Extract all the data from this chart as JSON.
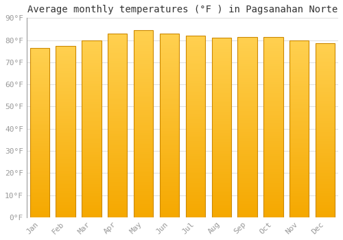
{
  "title": "Average monthly temperatures (°F ) in Pagsanahan Norte",
  "months": [
    "Jan",
    "Feb",
    "Mar",
    "Apr",
    "May",
    "Jun",
    "Jul",
    "Aug",
    "Sep",
    "Oct",
    "Nov",
    "Dec"
  ],
  "values": [
    76.5,
    77.5,
    80.0,
    83.0,
    84.5,
    83.0,
    82.0,
    81.0,
    81.5,
    81.5,
    80.0,
    78.5
  ],
  "bar_color_bottom": "#F5A800",
  "bar_color_top": "#FFD050",
  "bar_edge_color": "#CC8800",
  "background_color": "#FFFFFF",
  "grid_color": "#DDDDDD",
  "ylim": [
    0,
    90
  ],
  "yticks": [
    0,
    10,
    20,
    30,
    40,
    50,
    60,
    70,
    80,
    90
  ],
  "ytick_labels": [
    "0°F",
    "10°F",
    "20°F",
    "30°F",
    "40°F",
    "50°F",
    "60°F",
    "70°F",
    "80°F",
    "90°F"
  ],
  "title_fontsize": 10,
  "tick_fontsize": 8,
  "tick_color": "#999999",
  "title_color": "#333333",
  "bar_width": 0.75,
  "n_gradient_steps": 100
}
